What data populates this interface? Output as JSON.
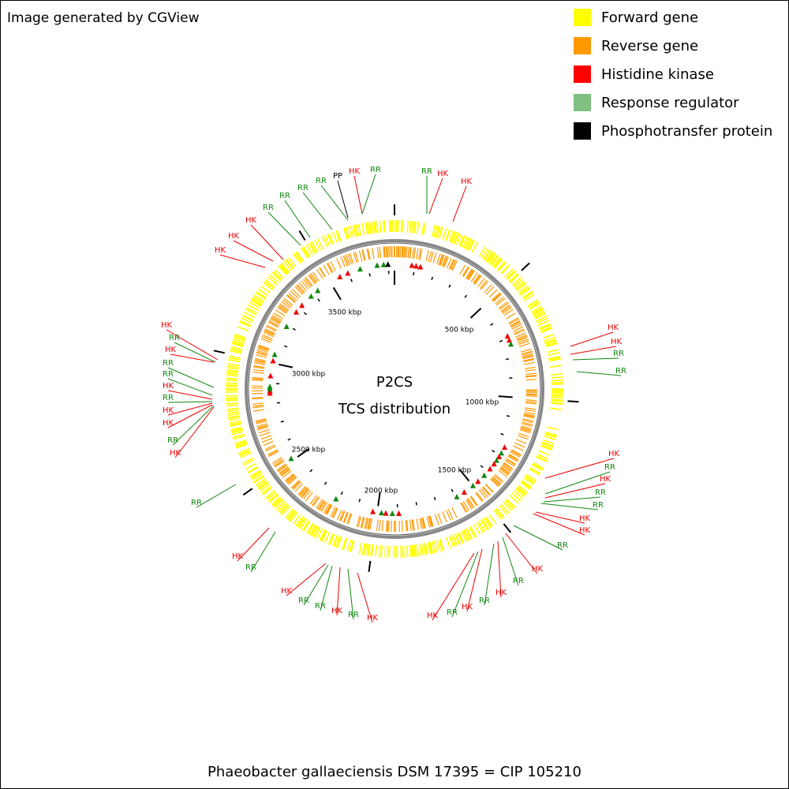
{
  "header": {
    "credit": "Image generated by CGView"
  },
  "legend": [
    {
      "label": "Forward gene",
      "color": "#ffff00"
    },
    {
      "label": "Reverse gene",
      "color": "#ff9900"
    },
    {
      "label": "Histidine kinase",
      "color": "#ff0000"
    },
    {
      "label": "Response regulator",
      "color": "#80c080"
    },
    {
      "label": "Phosphotransfer protein",
      "color": "#000000"
    }
  ],
  "map": {
    "title": "P2CS",
    "subtitle": "TCS distribution",
    "tick_labels": [
      "500 kbp",
      "1000 kbp",
      "1500 kbp",
      "2000 kbp",
      "2500 kbp",
      "3000 kbp",
      "3500 kbp"
    ],
    "feature_labels": [
      {
        "text": "HK",
        "color": "#ee0000"
      },
      {
        "text": "HK",
        "color": "#ee0000"
      },
      {
        "text": "HK",
        "color": "#ee0000"
      },
      {
        "text": "RR",
        "color": "#118811"
      },
      {
        "text": "RR",
        "color": "#118811"
      },
      {
        "text": "RR",
        "color": "#118811"
      },
      {
        "text": "RR",
        "color": "#118811"
      },
      {
        "text": "PP",
        "color": "#000000"
      },
      {
        "text": "HK",
        "color": "#ee0000"
      },
      {
        "text": "RR",
        "color": "#118811"
      },
      {
        "text": "RR",
        "color": "#118811"
      },
      {
        "text": "HK",
        "color": "#ee0000"
      },
      {
        "text": "HK",
        "color": "#ee0000"
      },
      {
        "text": "HK",
        "color": "#ee0000"
      },
      {
        "text": "HK",
        "color": "#ee0000"
      },
      {
        "text": "RR",
        "color": "#118811"
      },
      {
        "text": "RR",
        "color": "#118811"
      },
      {
        "text": "HK",
        "color": "#ee0000"
      },
      {
        "text": "RR",
        "color": "#118811"
      },
      {
        "text": "HK",
        "color": "#ee0000"
      },
      {
        "text": "RR",
        "color": "#118811"
      },
      {
        "text": "RR",
        "color": "#118811"
      },
      {
        "text": "HK",
        "color": "#ee0000"
      },
      {
        "text": "HK",
        "color": "#ee0000"
      },
      {
        "text": "RR",
        "color": "#118811"
      },
      {
        "text": "HK",
        "color": "#ee0000"
      },
      {
        "text": "RR",
        "color": "#118811"
      },
      {
        "text": "HK",
        "color": "#ee0000"
      },
      {
        "text": "RR",
        "color": "#118811"
      },
      {
        "text": "HK",
        "color": "#ee0000"
      },
      {
        "text": "RR",
        "color": "#118811"
      },
      {
        "text": "HK",
        "color": "#ee0000"
      },
      {
        "text": "HK",
        "color": "#ee0000"
      },
      {
        "text": "RR",
        "color": "#118811"
      },
      {
        "text": "HK",
        "color": "#ee0000"
      },
      {
        "text": "RR",
        "color": "#118811"
      },
      {
        "text": "RR",
        "color": "#118811"
      },
      {
        "text": "HK",
        "color": "#ee0000"
      },
      {
        "text": "RR",
        "color": "#118811"
      },
      {
        "text": "HK",
        "color": "#ee0000"
      },
      {
        "text": "RR",
        "color": "#118811"
      },
      {
        "text": "HK",
        "color": "#ee0000"
      },
      {
        "text": "HK",
        "color": "#ee0000"
      },
      {
        "text": "RR",
        "color": "#118811"
      },
      {
        "text": "RR",
        "color": "#118811"
      },
      {
        "text": "HK",
        "color": "#ee0000"
      },
      {
        "text": "HK",
        "color": "#ee0000"
      },
      {
        "text": "RR",
        "color": "#118811"
      },
      {
        "text": "HK",
        "color": "#ee0000"
      },
      {
        "text": "RR",
        "color": "#118811"
      },
      {
        "text": "RR",
        "color": "#118811"
      },
      {
        "text": "HK",
        "color": "#ee0000"
      }
    ]
  },
  "footer": {
    "organism": "Phaeobacter gallaeciensis DSM 17395 = CIP 105210"
  }
}
